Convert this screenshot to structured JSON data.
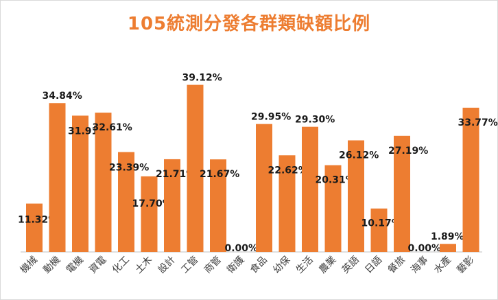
{
  "colors": {
    "bar": "#ed7d31",
    "title": "#ed7d31",
    "axis": "#bfbfbf",
    "grid": "#eeeeee"
  },
  "chart_data": {
    "type": "bar",
    "title": "105統測分發各群類缺額比例",
    "xlabel": "",
    "ylabel": "",
    "ylim": [
      0,
      45
    ],
    "grid": false,
    "legend": "none",
    "categories": [
      "機械",
      "動機",
      "電機",
      "資電",
      "化工",
      "土木",
      "設計",
      "工管",
      "商管",
      "衛護",
      "食品",
      "幼保",
      "生活",
      "農業",
      "英語",
      "日語",
      "餐旅",
      "海事",
      "水產",
      "藝影"
    ],
    "values": [
      11.32,
      34.84,
      31.91,
      32.61,
      23.39,
      17.7,
      21.71,
      39.12,
      21.67,
      0.0,
      29.95,
      22.62,
      29.3,
      20.31,
      26.12,
      10.17,
      27.19,
      0.0,
      1.89,
      33.77
    ],
    "data_labels": [
      "11.32%",
      "34.84%",
      "31.91%",
      "32.61%",
      "23.39%",
      "17.70%",
      "21.71%",
      "39.12%",
      "21.67%",
      "0.00%",
      "29.95%",
      "22.62%",
      "29.30%",
      "20.31%",
      "26.12%",
      "10.17%",
      "27.19%",
      "0.00%",
      "1.89%",
      "33.77%"
    ]
  }
}
